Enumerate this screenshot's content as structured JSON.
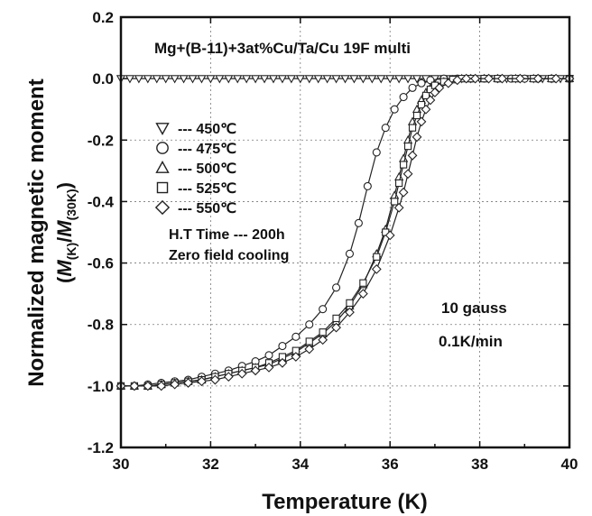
{
  "chart_data": {
    "type": "line",
    "title": "Mg+(B-11)+3at%Cu/Ta/Cu 19F multi",
    "xlabel": "Temperature (K)",
    "ylabel_main": "Normalized magnetic moment",
    "ylabel_sub": {
      "open": "(",
      "m1": "M",
      "s1": "(K)",
      "slash": "/",
      "m2": "M",
      "s2": "(30K)",
      "close": ")"
    },
    "xlim": [
      30,
      40
    ],
    "ylim": [
      -1.2,
      0.2
    ],
    "x_ticks": [
      "30",
      "32",
      "34",
      "36",
      "38",
      "40"
    ],
    "y_ticks": [
      "0.2",
      "0.0",
      "-0.2",
      "-0.4",
      "-0.6",
      "-0.8",
      "-1.0",
      "-1.2"
    ],
    "grid": true,
    "legend_placement": "upper-left",
    "annotations": {
      "ht_time": "H.T Time --- 200h",
      "cooling": "Zero field cooling",
      "field": "10 gauss",
      "rate": "0.1K/min"
    },
    "series": [
      {
        "name": "--- 450℃",
        "marker": "triangle-down",
        "x": [
          30,
          30.2,
          30.4,
          30.6,
          30.8,
          31,
          31.2,
          31.4,
          31.6,
          31.8,
          32,
          32.2,
          32.4,
          32.6,
          32.8,
          33,
          33.2,
          33.4,
          33.6,
          33.8,
          34,
          34.2,
          34.4,
          34.6,
          34.8,
          35,
          35.2,
          35.4,
          35.6,
          35.8,
          36,
          36.2,
          36.4,
          36.6,
          36.8,
          37,
          37.2,
          37.4,
          37.6,
          37.8,
          38,
          38.2,
          38.4,
          38.6,
          38.8,
          39,
          39.2,
          39.4,
          39.6,
          39.8,
          40
        ],
        "y": [
          0,
          0,
          0,
          0,
          0,
          0,
          0,
          0,
          0,
          0,
          0,
          0,
          0,
          0,
          0,
          0,
          0,
          0,
          0,
          0,
          0,
          0,
          0,
          0,
          0,
          0,
          0,
          0,
          0,
          0,
          0,
          0,
          0,
          0,
          0,
          0,
          0,
          0,
          0,
          0,
          0,
          0,
          0,
          0,
          0,
          0,
          0,
          0,
          0,
          0,
          0
        ]
      },
      {
        "name": "--- 475℃",
        "marker": "circle",
        "x": [
          30,
          30.3,
          30.6,
          30.9,
          31.2,
          31.5,
          31.8,
          32.1,
          32.4,
          32.7,
          33,
          33.3,
          33.6,
          33.9,
          34.2,
          34.5,
          34.8,
          35.1,
          35.3,
          35.5,
          35.7,
          35.9,
          36.1,
          36.3,
          36.5,
          36.7,
          36.9,
          37.2,
          37.5,
          37.8,
          38.1,
          38.4,
          38.7,
          39,
          39.3,
          39.6,
          40
        ],
        "y": [
          -1.0,
          -1.0,
          -0.995,
          -0.99,
          -0.985,
          -0.98,
          -0.97,
          -0.96,
          -0.95,
          -0.935,
          -0.92,
          -0.9,
          -0.87,
          -0.84,
          -0.8,
          -0.75,
          -0.68,
          -0.57,
          -0.47,
          -0.35,
          -0.24,
          -0.16,
          -0.1,
          -0.06,
          -0.03,
          -0.015,
          -0.005,
          0,
          0,
          0,
          0,
          0,
          0,
          0,
          0,
          0,
          0
        ]
      },
      {
        "name": "--- 500℃",
        "marker": "triangle-up",
        "x": [
          30,
          30.3,
          30.6,
          30.9,
          31.2,
          31.5,
          31.8,
          32.1,
          32.4,
          32.7,
          33,
          33.3,
          33.6,
          33.9,
          34.2,
          34.5,
          34.8,
          35.1,
          35.4,
          35.7,
          35.9,
          36.1,
          36.2,
          36.3,
          36.4,
          36.5,
          36.6,
          36.7,
          36.8,
          36.9,
          37,
          37.2,
          37.4,
          37.6,
          37.8,
          38.1,
          38.4,
          38.8,
          39.2,
          39.6,
          40
        ],
        "y": [
          -1.0,
          -1.0,
          -1.0,
          -0.995,
          -0.99,
          -0.985,
          -0.98,
          -0.97,
          -0.96,
          -0.95,
          -0.94,
          -0.93,
          -0.91,
          -0.89,
          -0.86,
          -0.83,
          -0.79,
          -0.74,
          -0.67,
          -0.57,
          -0.49,
          -0.38,
          -0.32,
          -0.26,
          -0.2,
          -0.14,
          -0.1,
          -0.07,
          -0.045,
          -0.03,
          -0.02,
          -0.01,
          -0.003,
          0,
          0,
          0,
          0,
          0,
          0,
          0,
          0
        ]
      },
      {
        "name": "--- 525℃",
        "marker": "square",
        "x": [
          30,
          30.3,
          30.6,
          30.9,
          31.2,
          31.5,
          31.8,
          32.1,
          32.4,
          32.7,
          33,
          33.3,
          33.6,
          33.9,
          34.2,
          34.5,
          34.8,
          35.1,
          35.4,
          35.7,
          35.9,
          36.1,
          36.2,
          36.3,
          36.4,
          36.5,
          36.6,
          36.7,
          36.8,
          36.9,
          37,
          37.2,
          37.4,
          37.6,
          37.8,
          38.1,
          38.4,
          38.8,
          39.2,
          39.6,
          40
        ],
        "y": [
          -1.0,
          -1.0,
          -1.0,
          -0.995,
          -0.99,
          -0.985,
          -0.98,
          -0.97,
          -0.96,
          -0.95,
          -0.94,
          -0.925,
          -0.905,
          -0.885,
          -0.855,
          -0.825,
          -0.78,
          -0.73,
          -0.665,
          -0.58,
          -0.5,
          -0.4,
          -0.34,
          -0.28,
          -0.22,
          -0.16,
          -0.12,
          -0.085,
          -0.055,
          -0.035,
          -0.022,
          -0.01,
          -0.003,
          0,
          0,
          0,
          0,
          0,
          0,
          0,
          0
        ]
      },
      {
        "name": "--- 550℃",
        "marker": "diamond",
        "x": [
          30,
          30.3,
          30.6,
          30.9,
          31.2,
          31.5,
          31.8,
          32.1,
          32.4,
          32.7,
          33,
          33.3,
          33.6,
          33.9,
          34.2,
          34.5,
          34.8,
          35.1,
          35.4,
          35.7,
          36,
          36.2,
          36.3,
          36.4,
          36.5,
          36.6,
          36.7,
          36.8,
          36.9,
          37,
          37.1,
          37.3,
          37.5,
          37.7,
          37.9,
          38.2,
          38.5,
          38.9,
          39.3,
          39.7,
          40
        ],
        "y": [
          -1.0,
          -1.0,
          -1.0,
          -1.0,
          -0.995,
          -0.99,
          -0.985,
          -0.98,
          -0.97,
          -0.96,
          -0.95,
          -0.94,
          -0.925,
          -0.905,
          -0.88,
          -0.85,
          -0.81,
          -0.76,
          -0.7,
          -0.62,
          -0.51,
          -0.42,
          -0.37,
          -0.31,
          -0.25,
          -0.19,
          -0.14,
          -0.1,
          -0.07,
          -0.045,
          -0.03,
          -0.015,
          -0.005,
          0,
          0,
          0,
          0,
          0,
          0,
          0,
          0
        ]
      }
    ]
  }
}
